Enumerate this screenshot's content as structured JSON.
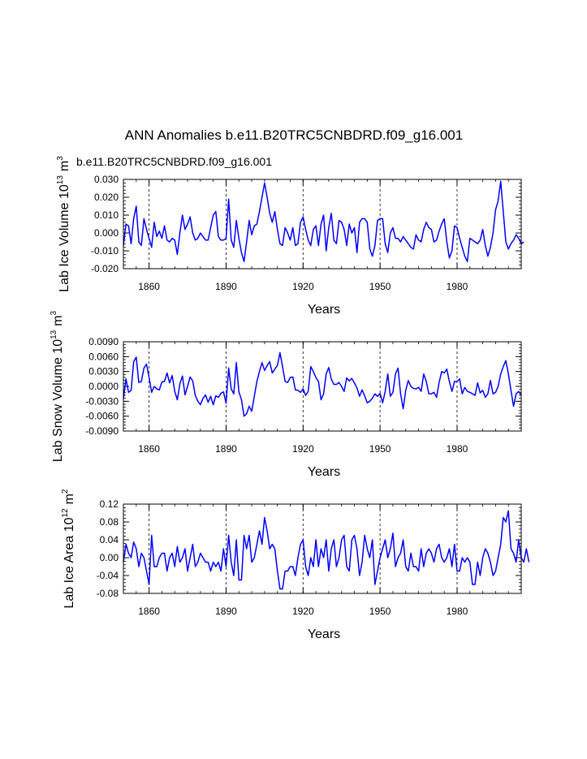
{
  "figure_title": "ANN Anomalies b.e11.B20TRC5CNBDRD.f09_g16.001",
  "run_label": "b.e11.B20TRC5CNBDRD.f09_g16.001",
  "colors": {
    "line": "#0000ff",
    "run_label": "#0000ff",
    "axes": "#000000",
    "gridline": "#000000"
  },
  "chart_data": [
    {
      "type": "line",
      "name": "lab-ice-volume",
      "ylabel_main": "Lab Ice Volume 10",
      "ylabel_sup": "13",
      "ylabel_unit": "m",
      "ylabel_unit_sup": "3",
      "xlabel": "Years",
      "xlim": [
        1850,
        2005
      ],
      "ylim": [
        -0.02,
        0.03
      ],
      "xticks": [
        1860,
        1890,
        1920,
        1950,
        1980
      ],
      "yticks": [
        -0.02,
        -0.01,
        0.0,
        0.01,
        0.02,
        0.03
      ],
      "ytick_labels": [
        "-0.020",
        "-0.010",
        "0.000",
        "0.010",
        "0.020",
        "0.030"
      ],
      "vlines": [
        1860,
        1890,
        1920,
        1950,
        1980
      ],
      "x_start": 1850,
      "values": [
        -0.007,
        0.005,
        0.004,
        -0.006,
        0.008,
        0.015,
        -0.005,
        -0.007,
        0.008,
        0.002,
        -0.003,
        -0.008,
        0.006,
        -0.002,
        0.001,
        -0.003,
        0.004,
        -0.004,
        -0.005,
        -0.003,
        -0.004,
        -0.012,
        0.0,
        0.01,
        0.002,
        0.005,
        0.009,
        0.0,
        -0.004,
        -0.003,
        0.0,
        -0.002,
        -0.004,
        -0.004,
        0.003,
        0.01,
        0.012,
        -0.002,
        -0.004,
        -0.004,
        -0.003,
        0.019,
        -0.004,
        -0.008,
        0.007,
        -0.003,
        -0.011,
        -0.016,
        -0.005,
        0.007,
        -0.001,
        0.004,
        0.005,
        0.012,
        0.02,
        0.028,
        0.02,
        0.011,
        0.006,
        0.012,
        0.002,
        -0.006,
        -0.007,
        0.003,
        0.0,
        -0.004,
        0.003,
        -0.007,
        -0.006,
        0.006,
        0.009,
        0.002,
        -0.004,
        -0.007,
        0.002,
        0.004,
        -0.007,
        0.005,
        0.01,
        -0.01,
        0.003,
        0.011,
        -0.004,
        -0.006,
        0.007,
        0.006,
        0.002,
        -0.007,
        0.005,
        0.0,
        0.003,
        -0.011,
        0.006,
        0.008,
        0.008,
        0.006,
        -0.009,
        -0.013,
        -0.007,
        0.007,
        0.008,
        0.008,
        -0.006,
        -0.011,
        0.0,
        0.003,
        -0.003,
        -0.003,
        -0.005,
        -0.002,
        -0.004,
        -0.006,
        -0.008,
        -0.009,
        -0.001,
        -0.004,
        -0.005,
        0.002,
        0.006,
        0.003,
        0.002,
        -0.005,
        -0.004,
        0.001,
        0.005,
        0.008,
        -0.005,
        -0.014,
        -0.01,
        0.004,
        0.003,
        -0.003,
        -0.008,
        -0.013,
        -0.016,
        -0.003,
        -0.004,
        -0.005,
        -0.006,
        -0.004,
        0.002,
        -0.007,
        -0.013,
        -0.008,
        0.0,
        0.013,
        0.018,
        0.029,
        0.012,
        -0.005,
        -0.009,
        -0.006,
        -0.004,
        -0.001,
        -0.003,
        -0.006,
        -0.005
      ]
    },
    {
      "type": "line",
      "name": "lab-snow-volume",
      "ylabel_main": "Lab Snow Volume 10",
      "ylabel_sup": "13",
      "ylabel_unit": "m",
      "ylabel_unit_sup": "3",
      "xlabel": "Years",
      "xlim": [
        1850,
        2005
      ],
      "ylim": [
        -0.009,
        0.009
      ],
      "xticks": [
        1860,
        1890,
        1920,
        1950,
        1980
      ],
      "yticks": [
        -0.009,
        -0.006,
        -0.003,
        0.0,
        0.003,
        0.006,
        0.009
      ],
      "ytick_labels": [
        "-0.0090",
        "-0.0060",
        "-0.0030",
        "0.0000",
        "0.0030",
        "0.0060",
        "0.0090"
      ],
      "vlines": [
        1860,
        1890,
        1920,
        1950,
        1980
      ],
      "x_start": 1850,
      "values": [
        -0.0025,
        0.0015,
        -0.0012,
        -0.0008,
        0.005,
        0.0059,
        0.0008,
        0.001,
        0.0037,
        0.0045,
        0.0018,
        -0.0012,
        0.0,
        -0.0005,
        -0.0007,
        0.0009,
        0.001,
        0.0027,
        0.0007,
        0.0022,
        -0.001,
        -0.0027,
        0.0005,
        0.0021,
        -0.0017,
        0.0,
        0.0019,
        0.0011,
        -0.0018,
        -0.003,
        -0.0037,
        -0.0024,
        -0.0017,
        -0.0032,
        -0.002,
        -0.0037,
        -0.0019,
        -0.0022,
        -0.0014,
        -0.0011,
        -0.0034,
        0.0037,
        -0.0005,
        -0.0015,
        0.0048,
        -0.0011,
        -0.0027,
        -0.006,
        -0.0055,
        -0.004,
        -0.005,
        -0.002,
        0.001,
        0.003,
        0.0048,
        0.0032,
        0.0042,
        0.005,
        0.0027,
        0.0035,
        0.0042,
        0.0068,
        0.004,
        0.001,
        0.0008,
        0.0018,
        0.0019,
        -0.0007,
        -0.0008,
        -0.0012,
        -0.0005,
        -0.0018,
        -0.001,
        0.004,
        0.003,
        0.0018,
        0.001,
        -0.0027,
        -0.0015,
        0.0025,
        0.0038,
        0.0015,
        0.0004,
        0.0004,
        0.0008,
        0.0,
        -0.001,
        0.0017,
        0.0011,
        0.0016,
        0.0007,
        -0.0003,
        -0.002,
        -0.0007,
        -0.0019,
        -0.0033,
        -0.003,
        -0.0024,
        -0.0015,
        -0.002,
        -0.0014,
        -0.0033,
        -0.001,
        0.0025,
        -0.002,
        -0.0012,
        0.0025,
        0.0037,
        -0.0015,
        -0.0045,
        -0.0008,
        0.0012,
        0.0,
        -0.0004,
        -0.0005,
        -0.0002,
        -0.001,
        0.0025,
        0.001,
        -0.0015,
        -0.0015,
        -0.0012,
        -0.0022,
        0.0008,
        0.003,
        0.0027,
        0.0035,
        0.001,
        -0.001,
        0.001,
        0.001,
        0.0015,
        -0.0015,
        -0.0002,
        -0.001,
        -0.0012,
        -0.0015,
        -0.0018,
        0.0007,
        -0.0013,
        -0.0008,
        -0.0022,
        -0.0015,
        0.0012,
        -0.0015,
        -0.0012,
        0.0,
        0.0025,
        0.004,
        0.0052,
        0.0025,
        -0.0008,
        -0.004,
        -0.0015,
        -0.001,
        -0.0018
      ]
    },
    {
      "type": "line",
      "name": "lab-ice-area",
      "ylabel_main": "Lab Ice Area 10",
      "ylabel_sup": "12",
      "ylabel_unit": "m",
      "ylabel_unit_sup": "2",
      "xlabel": "Years",
      "xlim": [
        1850,
        2005
      ],
      "ylim": [
        -0.08,
        0.12
      ],
      "xticks": [
        1860,
        1890,
        1920,
        1950,
        1980
      ],
      "yticks": [
        -0.08,
        -0.04,
        0.0,
        0.04,
        0.08,
        0.12
      ],
      "ytick_labels": [
        "-0.08",
        "-0.04",
        "0.00",
        "0.04",
        "0.08",
        "0.12"
      ],
      "vlines": [
        1860,
        1890,
        1920,
        1950,
        1980
      ],
      "x_start": 1850,
      "values": [
        -0.01,
        0.03,
        0.01,
        0.0,
        0.035,
        0.02,
        -0.02,
        0.01,
        0.0,
        -0.03,
        -0.06,
        0.05,
        -0.02,
        -0.02,
        0.0,
        0.01,
        0.01,
        -0.03,
        0.0,
        0.01,
        -0.02,
        0.025,
        -0.01,
        0.0,
        0.02,
        -0.03,
        0.0,
        0.03,
        -0.02,
        -0.01,
        0.01,
        0.0,
        -0.01,
        -0.01,
        -0.03,
        -0.01,
        -0.02,
        -0.01,
        -0.03,
        0.02,
        -0.02,
        0.05,
        -0.01,
        -0.04,
        0.04,
        -0.05,
        -0.05,
        0.05,
        0.02,
        0.05,
        -0.01,
        0.0,
        0.03,
        0.06,
        0.03,
        0.09,
        0.06,
        0.02,
        0.03,
        0.02,
        -0.03,
        -0.07,
        -0.07,
        -0.03,
        -0.03,
        -0.02,
        -0.02,
        -0.04,
        0.0,
        0.03,
        0.04,
        -0.02,
        -0.04,
        0.0,
        -0.02,
        0.04,
        -0.02,
        0.02,
        0.0,
        0.04,
        -0.03,
        0.02,
        0.04,
        -0.02,
        0.0,
        0.04,
        0.05,
        -0.02,
        -0.03,
        0.04,
        0.05,
        0.02,
        -0.04,
        -0.01,
        0.05,
        0.02,
        0.0,
        0.04,
        -0.06,
        -0.03,
        0.0,
        0.02,
        0.04,
        0.0,
        0.02,
        0.055,
        -0.02,
        0.0,
        0.01,
        0.04,
        -0.02,
        -0.03,
        0.01,
        -0.02,
        -0.02,
        -0.03,
        0.02,
        -0.02,
        0.01,
        0.02,
        0.01,
        -0.01,
        0.02,
        0.03,
        0.0,
        -0.01,
        0.0,
        0.02,
        -0.02,
        0.03,
        -0.03,
        -0.03,
        0.0,
        -0.01,
        0.0,
        -0.01,
        -0.06,
        -0.06,
        -0.01,
        -0.04,
        0.0,
        0.02,
        0.01,
        -0.01,
        -0.04,
        -0.03,
        0.0,
        0.03,
        0.09,
        0.08,
        0.105,
        0.02,
        0.01,
        -0.01,
        0.04,
        0.0,
        -0.01,
        0.02,
        -0.01
      ]
    }
  ]
}
